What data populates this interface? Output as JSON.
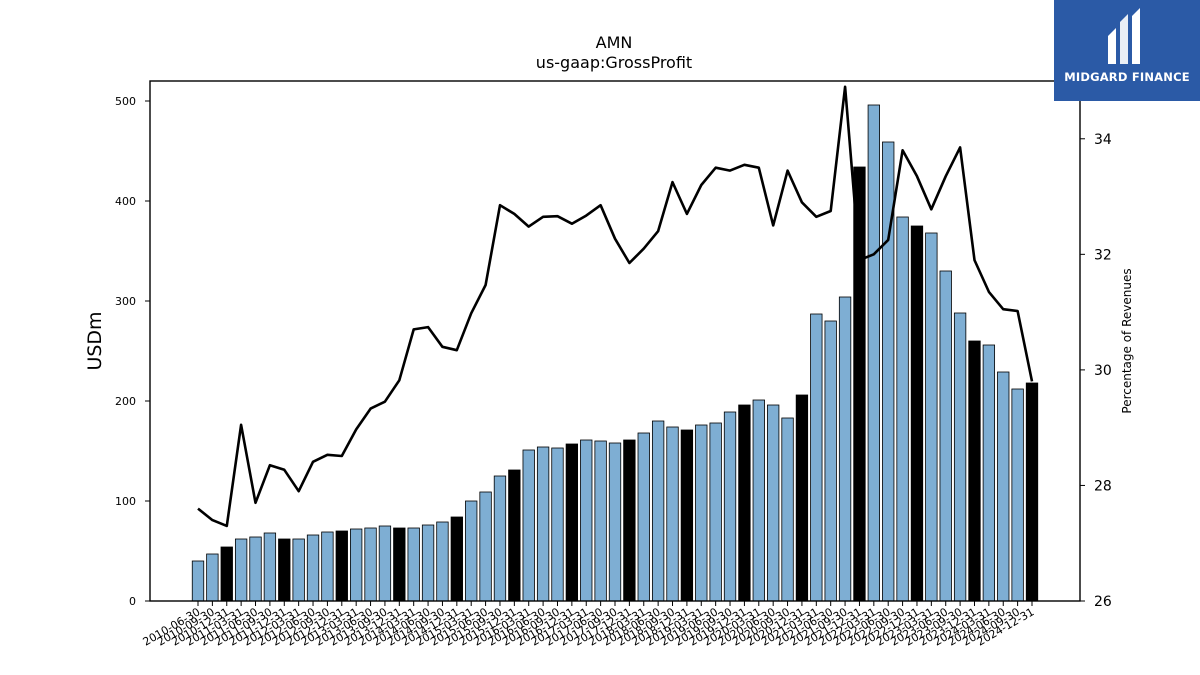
{
  "chart_data": {
    "type": "bar+line",
    "title": "AMN",
    "subtitle": "us-gaap:GrossProfit",
    "ylabel_left": "USDm",
    "ylabel_right": "Percentage of Revenues",
    "ylim_left": [
      0,
      520
    ],
    "ylim_right": [
      26,
      35.0
    ],
    "yticks_left": [
      0,
      100,
      200,
      300,
      400,
      500
    ],
    "yticks_right": [
      26,
      28,
      30,
      32,
      34
    ],
    "colors": {
      "bar_quarter": "#7eaed3",
      "bar_fy": "#000000",
      "line": "#000000"
    },
    "categories": [
      "2010-06-30",
      "2010-09-30",
      "2010-12-31",
      "2011-03-31",
      "2011-06-30",
      "2011-09-30",
      "2011-12-31",
      "2012-03-31",
      "2012-06-30",
      "2012-09-30",
      "2012-12-31",
      "2013-03-31",
      "2013-06-30",
      "2013-09-30",
      "2013-12-31",
      "2014-03-31",
      "2014-06-30",
      "2014-09-30",
      "2014-12-31",
      "2015-03-31",
      "2015-06-30",
      "2015-09-30",
      "2015-12-31",
      "2016-03-31",
      "2016-06-30",
      "2016-09-30",
      "2016-12-31",
      "2017-03-31",
      "2017-06-30",
      "2017-09-30",
      "2017-12-31",
      "2018-03-31",
      "2018-06-30",
      "2018-09-30",
      "2018-12-31",
      "2019-03-31",
      "2019-06-30",
      "2019-09-30",
      "2019-12-31",
      "2020-03-31",
      "2020-06-30",
      "2020-09-30",
      "2020-12-31",
      "2021-03-31",
      "2021-06-30",
      "2021-09-30",
      "2021-12-31",
      "2022-03-31",
      "2022-06-30",
      "2022-09-30",
      "2022-12-31",
      "2023-03-31",
      "2023-06-30",
      "2023-09-30",
      "2023-12-31",
      "2024-03-31",
      "2024-06-30",
      "2024-09-30",
      "2024-12-31"
    ],
    "fiscal_year_end": [
      false,
      false,
      true,
      false,
      false,
      false,
      true,
      false,
      false,
      false,
      true,
      false,
      false,
      false,
      true,
      false,
      false,
      false,
      true,
      false,
      false,
      false,
      true,
      false,
      false,
      false,
      true,
      false,
      false,
      false,
      true,
      false,
      false,
      false,
      true,
      false,
      false,
      false,
      true,
      false,
      false,
      false,
      true,
      false,
      false,
      false,
      true,
      false,
      false,
      false,
      true,
      false,
      false,
      false,
      true,
      false,
      false,
      false,
      true
    ],
    "series": [
      {
        "name": "",
        "kind": "bar",
        "axis": "left",
        "values": [
          40,
          47,
          54,
          62,
          64,
          68,
          62,
          62,
          66,
          69,
          70,
          72,
          73,
          75,
          73,
          73,
          76,
          79,
          84,
          100,
          109,
          125,
          131,
          151,
          154,
          153,
          157,
          161,
          160,
          158,
          161,
          168,
          180,
          174,
          171,
          176,
          178,
          189,
          196,
          201,
          196,
          183,
          206,
          287,
          280,
          304,
          434,
          496,
          459,
          384,
          375,
          368,
          330,
          288,
          260,
          256,
          229,
          212,
          218
        ]
      },
      {
        "name": "",
        "kind": "line",
        "axis": "right",
        "values": [
          27.6,
          27.4,
          27.3,
          29.05,
          27.7,
          28.35,
          28.27,
          27.9,
          28.41,
          28.53,
          28.51,
          28.97,
          29.33,
          29.45,
          29.82,
          30.7,
          30.74,
          30.4,
          30.34,
          30.98,
          31.47,
          32.85,
          32.7,
          32.48,
          32.65,
          32.66,
          32.53,
          32.67,
          32.85,
          32.27,
          31.85,
          32.1,
          32.4,
          33.25,
          32.7,
          33.2,
          33.5,
          33.45,
          33.55,
          33.5,
          32.5,
          33.45,
          32.9,
          32.65,
          32.75,
          34.9,
          31.9,
          32.0,
          32.25,
          33.8,
          33.35,
          32.78,
          33.35,
          33.85,
          31.9,
          31.35,
          31.05,
          31.02,
          29.8
        ]
      }
    ]
  },
  "brand": {
    "name": "MIDGARD FINANCE"
  }
}
